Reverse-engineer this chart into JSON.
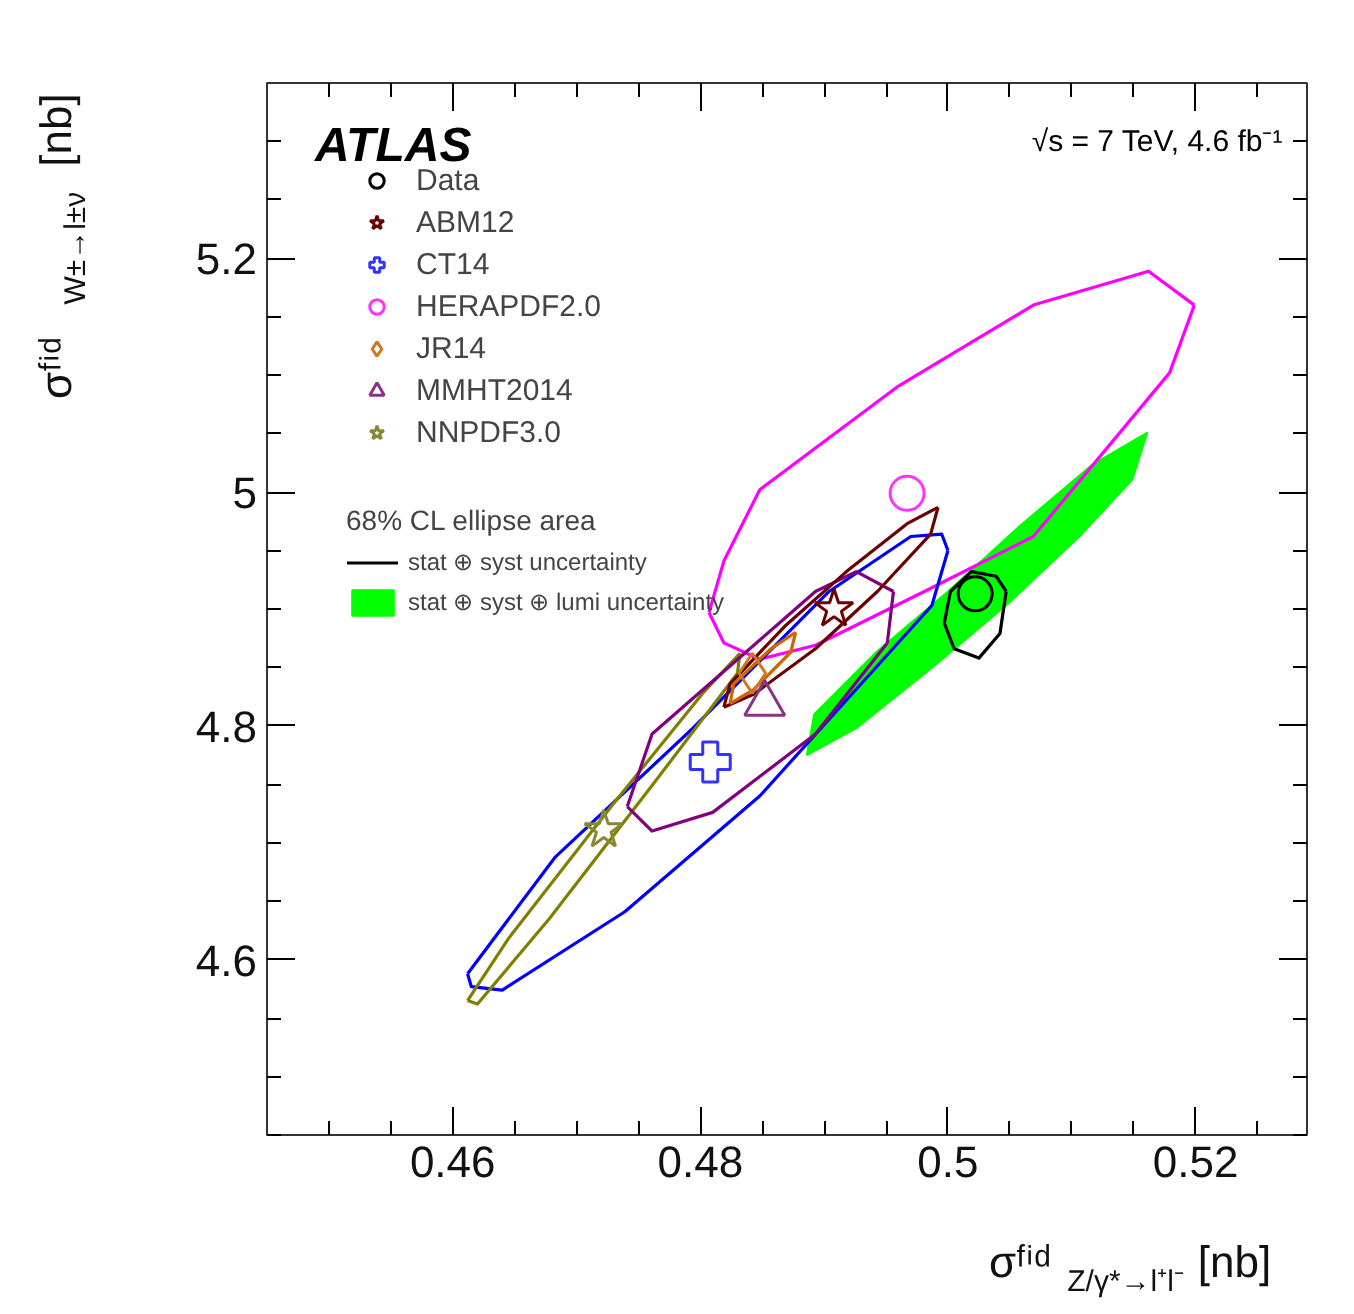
{
  "chart_data": {
    "type": "scatter",
    "xlabel": "σᶠⁱᵈ$_{Z/γ*→l⁺l⁻}$ [nb]",
    "ylabel": "σᶠⁱᵈ$_{W±→l±ν}$ [nb]",
    "annotations": [
      "ATLAS",
      "√s = 7 TeV, 4.6 fb⁻¹"
    ],
    "legend_title": "68% CL ellipse area",
    "xlim": [
      0.445,
      0.529
    ],
    "ylim": [
      4.45,
      5.35
    ],
    "xticks": [
      {
        "value": 0.445,
        "label": null
      },
      {
        "value": 0.45,
        "label": null
      },
      {
        "value": 0.455,
        "label": null
      },
      {
        "value": 0.46,
        "label": "0.46"
      },
      {
        "value": 0.465,
        "label": null
      },
      {
        "value": 0.47,
        "label": null
      },
      {
        "value": 0.475,
        "label": null
      },
      {
        "value": 0.48,
        "label": "0.48"
      },
      {
        "value": 0.485,
        "label": null
      },
      {
        "value": 0.49,
        "label": null
      },
      {
        "value": 0.495,
        "label": null
      },
      {
        "value": 0.5,
        "label": "0.5"
      },
      {
        "value": 0.505,
        "label": null
      },
      {
        "value": 0.51,
        "label": null
      },
      {
        "value": 0.515,
        "label": null
      },
      {
        "value": 0.52,
        "label": "0.52"
      },
      {
        "value": 0.525,
        "label": null
      }
    ],
    "yticks": [
      {
        "value": 4.45,
        "label": null
      },
      {
        "value": 4.5,
        "label": null
      },
      {
        "value": 4.55,
        "label": null
      },
      {
        "value": 4.6,
        "label": "4.6"
      },
      {
        "value": 4.65,
        "label": null
      },
      {
        "value": 4.7,
        "label": null
      },
      {
        "value": 4.75,
        "label": null
      },
      {
        "value": 4.8,
        "label": "4.8"
      },
      {
        "value": 4.85,
        "label": null
      },
      {
        "value": 4.9,
        "label": null
      },
      {
        "value": 4.95,
        "label": null
      },
      {
        "value": 5,
        "label": "5"
      },
      {
        "value": 5.05,
        "label": null
      },
      {
        "value": 5.1,
        "label": null
      },
      {
        "value": 5.15,
        "label": null
      },
      {
        "value": 5.2,
        "label": "5.2"
      },
      {
        "value": 5.25,
        "label": null
      },
      {
        "value": 5.3,
        "label": null
      }
    ],
    "grid": false,
    "legend": "top left",
    "series": [
      {
        "type": "area",
        "name": "stat ⊕ syst ⊕ lumi uncertainty",
        "color": "#00ff00",
        "x": [
          0.5161,
          0.5149,
          0.5108,
          0.505,
          0.4992,
          0.4926,
          0.4886,
          0.4892,
          0.4942,
          0.5,
          0.5058,
          0.5116,
          0.5161
        ],
        "values": [
          5.051,
          5.011,
          4.964,
          4.906,
          4.854,
          4.798,
          4.775,
          4.81,
          4.863,
          4.915,
          4.971,
          5.023,
          5.051
        ]
      },
      {
        "type": "line",
        "color": "#ff00ff",
        "x": [
          0.4807,
          0.4819,
          0.4848,
          0.4959,
          0.5069,
          0.5162,
          0.5199
        ],
        "values": [
          4.897,
          4.941,
          5.002,
          5.09,
          5.16,
          5.189,
          5.16
        ]
      },
      {
        "type": "line",
        "color": "#ff00ff",
        "x": [
          0.4807,
          0.4819,
          0.4848,
          0.4893,
          0.4981,
          0.5069,
          0.5179,
          0.5199
        ],
        "values": [
          4.897,
          4.871,
          4.857,
          4.869,
          4.915,
          4.962,
          5.102,
          5.16
        ]
      },
      {
        "type": "line",
        "color": "#0000ff",
        "x": [
          0.4612,
          0.4683,
          0.4794,
          0.4904,
          0.497,
          0.4995,
          0.5
        ],
        "values": [
          4.588,
          4.688,
          4.798,
          4.915,
          4.962,
          4.964,
          4.95
        ]
      },
      {
        "type": "line",
        "color": "#0000ff",
        "x": [
          0.4612,
          0.4615,
          0.464,
          0.4739,
          0.4848,
          0.4987,
          0.5
        ],
        "values": [
          4.588,
          4.577,
          4.574,
          4.641,
          4.74,
          4.903,
          4.95
        ]
      },
      {
        "type": "line",
        "color": "#808000",
        "x": [
          0.4612,
          0.4645,
          0.4728,
          0.4802,
          0.4832
        ],
        "values": [
          4.565,
          4.618,
          4.731,
          4.828,
          4.862
        ]
      },
      {
        "type": "line",
        "color": "#808000",
        "x": [
          0.4612,
          0.462,
          0.4678,
          0.4761,
          0.483,
          0.4832
        ],
        "values": [
          4.565,
          4.562,
          4.635,
          4.749,
          4.845,
          4.862
        ]
      },
      {
        "type": "line",
        "color": "#800080",
        "x": [
          0.4741,
          0.4761,
          0.4827,
          0.4893,
          0.4926,
          0.4956
        ],
        "values": [
          4.731,
          4.793,
          4.854,
          4.915,
          4.932,
          4.915
        ]
      },
      {
        "type": "line",
        "color": "#800080",
        "x": [
          0.4741,
          0.4761,
          0.481,
          0.4893,
          0.4951,
          0.4956
        ],
        "values": [
          4.731,
          4.71,
          4.726,
          4.793,
          4.871,
          4.915
        ]
      },
      {
        "type": "line",
        "color": "#6b0000",
        "x": [
          0.4819,
          0.4824,
          0.4868,
          0.4918,
          0.4967,
          0.4992
        ],
        "values": [
          4.816,
          4.836,
          4.885,
          4.932,
          4.973,
          4.987
        ]
      },
      {
        "type": "line",
        "color": "#6b0000",
        "x": [
          0.4819,
          0.4843,
          0.4893,
          0.4943,
          0.4986,
          0.4992
        ],
        "values": [
          4.816,
          4.827,
          4.866,
          4.915,
          4.964,
          4.987
        ]
      },
      {
        "type": "line",
        "color": "#cc6600",
        "x": [
          0.4824,
          0.4827,
          0.4857,
          0.4877
        ],
        "values": [
          4.819,
          4.836,
          4.866,
          4.88
        ]
      },
      {
        "type": "line",
        "color": "#cc6600",
        "x": [
          0.4824,
          0.4843,
          0.4873,
          0.4877
        ],
        "values": [
          4.819,
          4.831,
          4.863,
          4.88
        ]
      },
      {
        "type": "line",
        "name": "stat ⊕ syst uncertainty",
        "color": "#000000",
        "x": [
          0.4997,
          0.5002,
          0.5019,
          0.5039,
          0.5047
        ],
        "values": [
          4.888,
          4.915,
          4.932,
          4.928,
          4.915
        ]
      },
      {
        "type": "line",
        "color": "#000000",
        "x": [
          0.4997,
          0.5005,
          0.5025,
          0.5042,
          0.5047
        ],
        "values": [
          4.888,
          4.866,
          4.858,
          4.879,
          4.915
        ]
      },
      {
        "name": "Data",
        "color": "#000000",
        "marker": "circle",
        "x": [
          0.5022
        ],
        "values": [
          4.913
        ]
      },
      {
        "name": "ABM12",
        "color": "#6b0000",
        "marker": "star",
        "x": [
          0.4908
        ],
        "values": [
          4.9
        ]
      },
      {
        "name": "CT14",
        "color": "#3333ff",
        "marker": "cross",
        "x": [
          0.4808
        ],
        "values": [
          4.769
        ]
      },
      {
        "name": "HERAPDF2.0",
        "color": "#ff33ff",
        "marker": "circle",
        "x": [
          0.4967
        ],
        "values": [
          4.999
        ]
      },
      {
        "name": "JR14",
        "color": "#cc7722",
        "marker": "diamond",
        "x": [
          0.4842
        ],
        "values": [
          4.845
        ]
      },
      {
        "name": "MMHT2014",
        "color": "#883388",
        "marker": "triangle",
        "x": [
          0.4852
        ],
        "values": [
          4.819
        ]
      },
      {
        "name": "NNPDF3.0",
        "color": "#888833",
        "marker": "star",
        "x": [
          0.4722
        ],
        "values": [
          4.711
        ]
      }
    ]
  }
}
